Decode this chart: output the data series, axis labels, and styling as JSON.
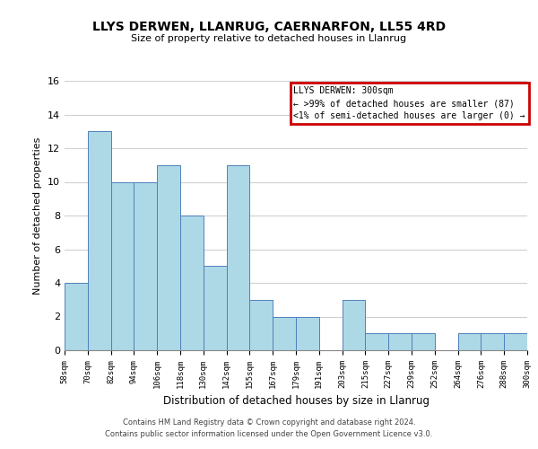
{
  "title": "LLYS DERWEN, LLANRUG, CAERNARFON, LL55 4RD",
  "subtitle": "Size of property relative to detached houses in Llanrug",
  "xlabel": "Distribution of detached houses by size in Llanrug",
  "ylabel": "Number of detached properties",
  "footer_lines": [
    "Contains HM Land Registry data © Crown copyright and database right 2024.",
    "Contains public sector information licensed under the Open Government Licence v3.0."
  ],
  "bin_labels": [
    "58sqm",
    "70sqm",
    "82sqm",
    "94sqm",
    "106sqm",
    "118sqm",
    "130sqm",
    "142sqm",
    "155sqm",
    "167sqm",
    "179sqm",
    "191sqm",
    "203sqm",
    "215sqm",
    "227sqm",
    "239sqm",
    "252sqm",
    "264sqm",
    "276sqm",
    "288sqm",
    "300sqm"
  ],
  "bar_heights": [
    4,
    13,
    10,
    10,
    11,
    8,
    5,
    11,
    3,
    2,
    2,
    0,
    3,
    1,
    1,
    1,
    0,
    1,
    1,
    1
  ],
  "bar_color": "#add8e6",
  "bar_edge_color": "#4f81bd",
  "ylim": [
    0,
    16
  ],
  "yticks": [
    0,
    2,
    4,
    6,
    8,
    10,
    12,
    14,
    16
  ],
  "annotation_box_title": "LLYS DERWEN: 300sqm",
  "annotation_line1": "← >99% of detached houses are smaller (87)",
  "annotation_line2": "<1% of semi-detached houses are larger (0) →",
  "annotation_box_color": "#ffffff",
  "annotation_box_edge_color": "#cc0000",
  "grid_color": "#d0d0d0"
}
